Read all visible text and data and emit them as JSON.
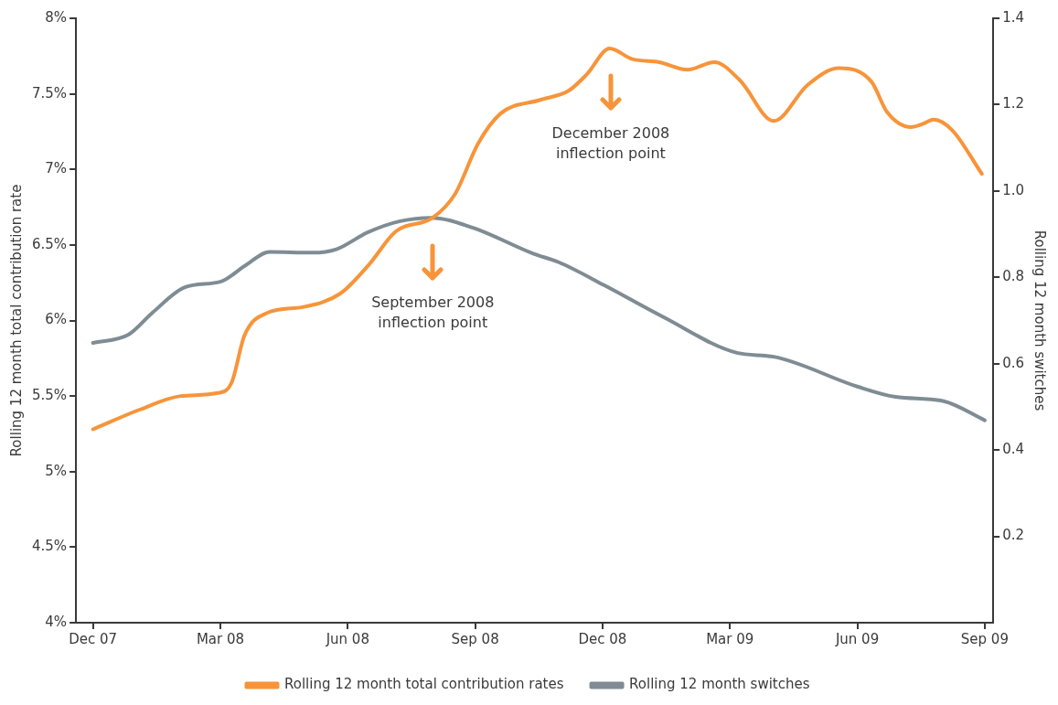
{
  "chart_data": {
    "type": "line",
    "xlabel": null,
    "ylabel": "Rolling 12 month total contribution rate",
    "y2label": "Rolling 12 month switches",
    "xlim": [
      "2007-11-19",
      "2009-09-07"
    ],
    "xticks": [
      {
        "value": "2007-12",
        "label": "Dec 07"
      },
      {
        "value": "2008-03",
        "label": "Mar 08"
      },
      {
        "value": "2008-06",
        "label": "Jun 08"
      },
      {
        "value": "2008-09",
        "label": "Sep 08"
      },
      {
        "value": "2008-12",
        "label": "Dec 08"
      },
      {
        "value": "2009-03",
        "label": "Mar 09"
      },
      {
        "value": "2009-06",
        "label": "Jun 09"
      },
      {
        "value": "2009-09",
        "label": "Sep 09"
      }
    ],
    "ylim": [
      4,
      8
    ],
    "yticks": [
      {
        "value": 4,
        "label": "4%"
      },
      {
        "value": 4.5,
        "label": "4.5%"
      },
      {
        "value": 5,
        "label": "5%"
      },
      {
        "value": 5.5,
        "label": "5.5%"
      },
      {
        "value": 6,
        "label": "6%"
      },
      {
        "value": 6.5,
        "label": "6.5%"
      },
      {
        "value": 7,
        "label": "7%"
      },
      {
        "value": 7.5,
        "label": "7.5%"
      },
      {
        "value": 8,
        "label": "8%"
      }
    ],
    "y2lim": [
      0,
      1.4
    ],
    "y2ticks": [
      0.2,
      0.4,
      0.6,
      0.8,
      {
        "value": 1,
        "label": "1.0"
      },
      1.2,
      1.4
    ],
    "legend": "bottom",
    "marker": "none",
    "line_style": "solid",
    "series": [
      {
        "name": "Rolling 12 month total contribution rates",
        "color": "#f7943a",
        "x": [
          "2007-12-01",
          "2008-01-04",
          "2008-02-03",
          "2008-02-29",
          "2008-03-09",
          "2008-03-18",
          "2008-04-04",
          "2008-04-30",
          "2008-05-26",
          "2008-06-16",
          "2008-07-05",
          "2008-07-31",
          "2008-08-17",
          "2008-09-03",
          "2008-09-19",
          "2008-10-17",
          "2008-11-07",
          "2008-11-20",
          "2008-12-06",
          "2008-12-22",
          "2009-01-11",
          "2009-02-01",
          "2009-02-20",
          "2009-03-08",
          "2009-04-02",
          "2009-04-26",
          "2009-05-18",
          "2009-06-11",
          "2009-06-22",
          "2009-07-09",
          "2009-07-17",
          "2009-07-25",
          "2009-08-08",
          "2009-08-29"
        ],
        "values": [
          5.28,
          5.41,
          5.5,
          5.52,
          5.59,
          5.9,
          6.05,
          6.09,
          6.18,
          6.37,
          6.59,
          6.68,
          6.84,
          7.17,
          7.37,
          7.46,
          7.52,
          7.63,
          7.8,
          7.73,
          7.71,
          7.66,
          7.71,
          7.59,
          7.32,
          7.56,
          7.67,
          7.58,
          7.38,
          7.28,
          7.3,
          7.33,
          7.26,
          6.97
        ]
      },
      {
        "name": "Rolling 12 month switches",
        "color": "#7f8c94",
        "axis": "y2",
        "x": [
          "2007-12-01",
          "2007-12-26",
          "2008-01-13",
          "2008-02-06",
          "2008-03-02",
          "2008-03-18",
          "2008-04-06",
          "2008-05-06",
          "2008-05-23",
          "2008-06-15",
          "2008-07-08",
          "2008-07-30",
          "2008-08-30",
          "2008-10-12",
          "2008-10-30",
          "2008-12-02",
          "2009-01-14",
          "2009-03-06",
          "2009-04-02",
          "2009-06-01",
          "2009-06-28",
          "2009-08-02",
          "2009-09-01"
        ],
        "values": [
          0.648,
          0.667,
          0.718,
          0.777,
          0.791,
          0.826,
          0.859,
          0.857,
          0.865,
          0.904,
          0.93,
          0.938,
          0.914,
          0.855,
          0.835,
          0.782,
          0.708,
          0.625,
          0.616,
          0.547,
          0.523,
          0.513,
          0.469
        ]
      }
    ],
    "annotations": [
      "September 2008\ninflection point",
      "December 2008\ninflection point"
    ]
  }
}
